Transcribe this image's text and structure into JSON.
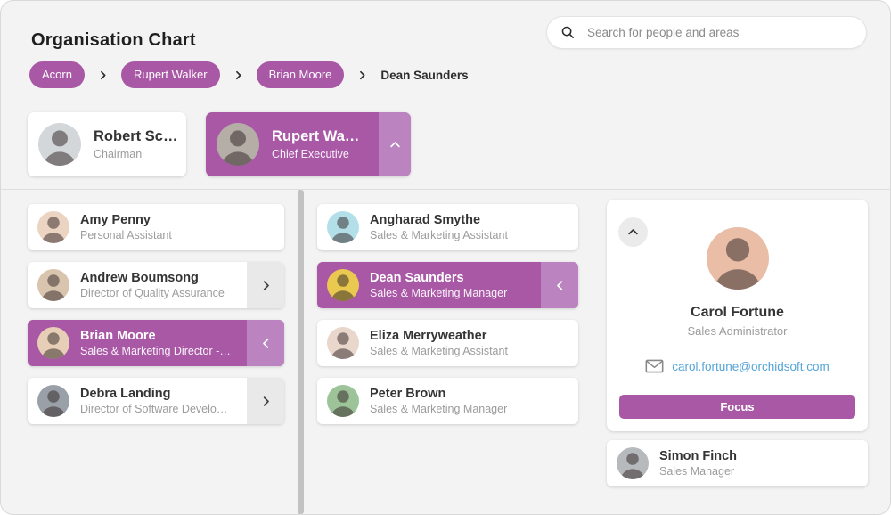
{
  "header": {
    "title": "Organisation Chart",
    "search": {
      "placeholder": "Search for people and areas"
    }
  },
  "breadcrumb": {
    "items": [
      {
        "label": "Acorn",
        "type": "pill"
      },
      {
        "label": "Rupert Walker",
        "type": "pill"
      },
      {
        "label": "Brian Moore",
        "type": "pill"
      },
      {
        "label": "Dean Saunders",
        "type": "text"
      }
    ]
  },
  "top_row": {
    "cards": [
      {
        "name": "Robert Scott",
        "role": "Chairman",
        "selected": false,
        "chevron": null,
        "avatar_color": "#d4d7da"
      },
      {
        "name": "Rupert Walker",
        "role": "Chief Executive",
        "selected": true,
        "chevron": "up",
        "avatar_color": "#b4aea7"
      }
    ]
  },
  "columns": {
    "left": [
      {
        "name": "Amy Penny",
        "role": "Personal Assistant",
        "selected": false,
        "chevron": null,
        "avatar_color": "#ecd4c2"
      },
      {
        "name": "Andrew Boumsong",
        "role": "Director of Quality Assurance",
        "selected": false,
        "chevron": "right",
        "avatar_color": "#d9c4ae"
      },
      {
        "name": "Brian Moore",
        "role": "Sales & Marketing Director - Nor...",
        "selected": true,
        "chevron": "left",
        "avatar_color": "#e6cfb6"
      },
      {
        "name": "Debra Landing",
        "role": "Director of Software Developm...",
        "selected": false,
        "chevron": "right",
        "avatar_color": "#9aa0a8"
      }
    ],
    "middle": [
      {
        "name": "Angharad Smythe",
        "role": "Sales & Marketing Assistant",
        "selected": false,
        "chevron": null,
        "avatar_color": "#b3dfe8"
      },
      {
        "name": "Dean Saunders",
        "role": "Sales & Marketing Manager",
        "selected": true,
        "chevron": "left",
        "avatar_color": "#e9c94f"
      },
      {
        "name": "Eliza Merryweather",
        "role": "Sales & Marketing Assistant",
        "selected": false,
        "chevron": null,
        "avatar_color": "#ead7cc"
      },
      {
        "name": "Peter Brown",
        "role": "Sales & Marketing Manager",
        "selected": false,
        "chevron": null,
        "avatar_color": "#9dc399"
      }
    ]
  },
  "detail_panel": {
    "name": "Carol Fortune",
    "role": "Sales Administrator",
    "email": "carol.fortune@orchidsoft.com",
    "focus_label": "Focus",
    "avatar_color": "#e9bda6"
  },
  "right_list": [
    {
      "name": "Simon Finch",
      "role": "Sales Manager",
      "selected": false,
      "chevron": null,
      "avatar_color": "#b7babd"
    }
  ],
  "colors": {
    "accent": "#a958a6",
    "accent_light": "#bb84c0",
    "card_strip_gray": "#e9e9e9",
    "email_link": "#55a4d6",
    "scrollbar": "#c2c2c2",
    "background": "#f4f3f4"
  }
}
